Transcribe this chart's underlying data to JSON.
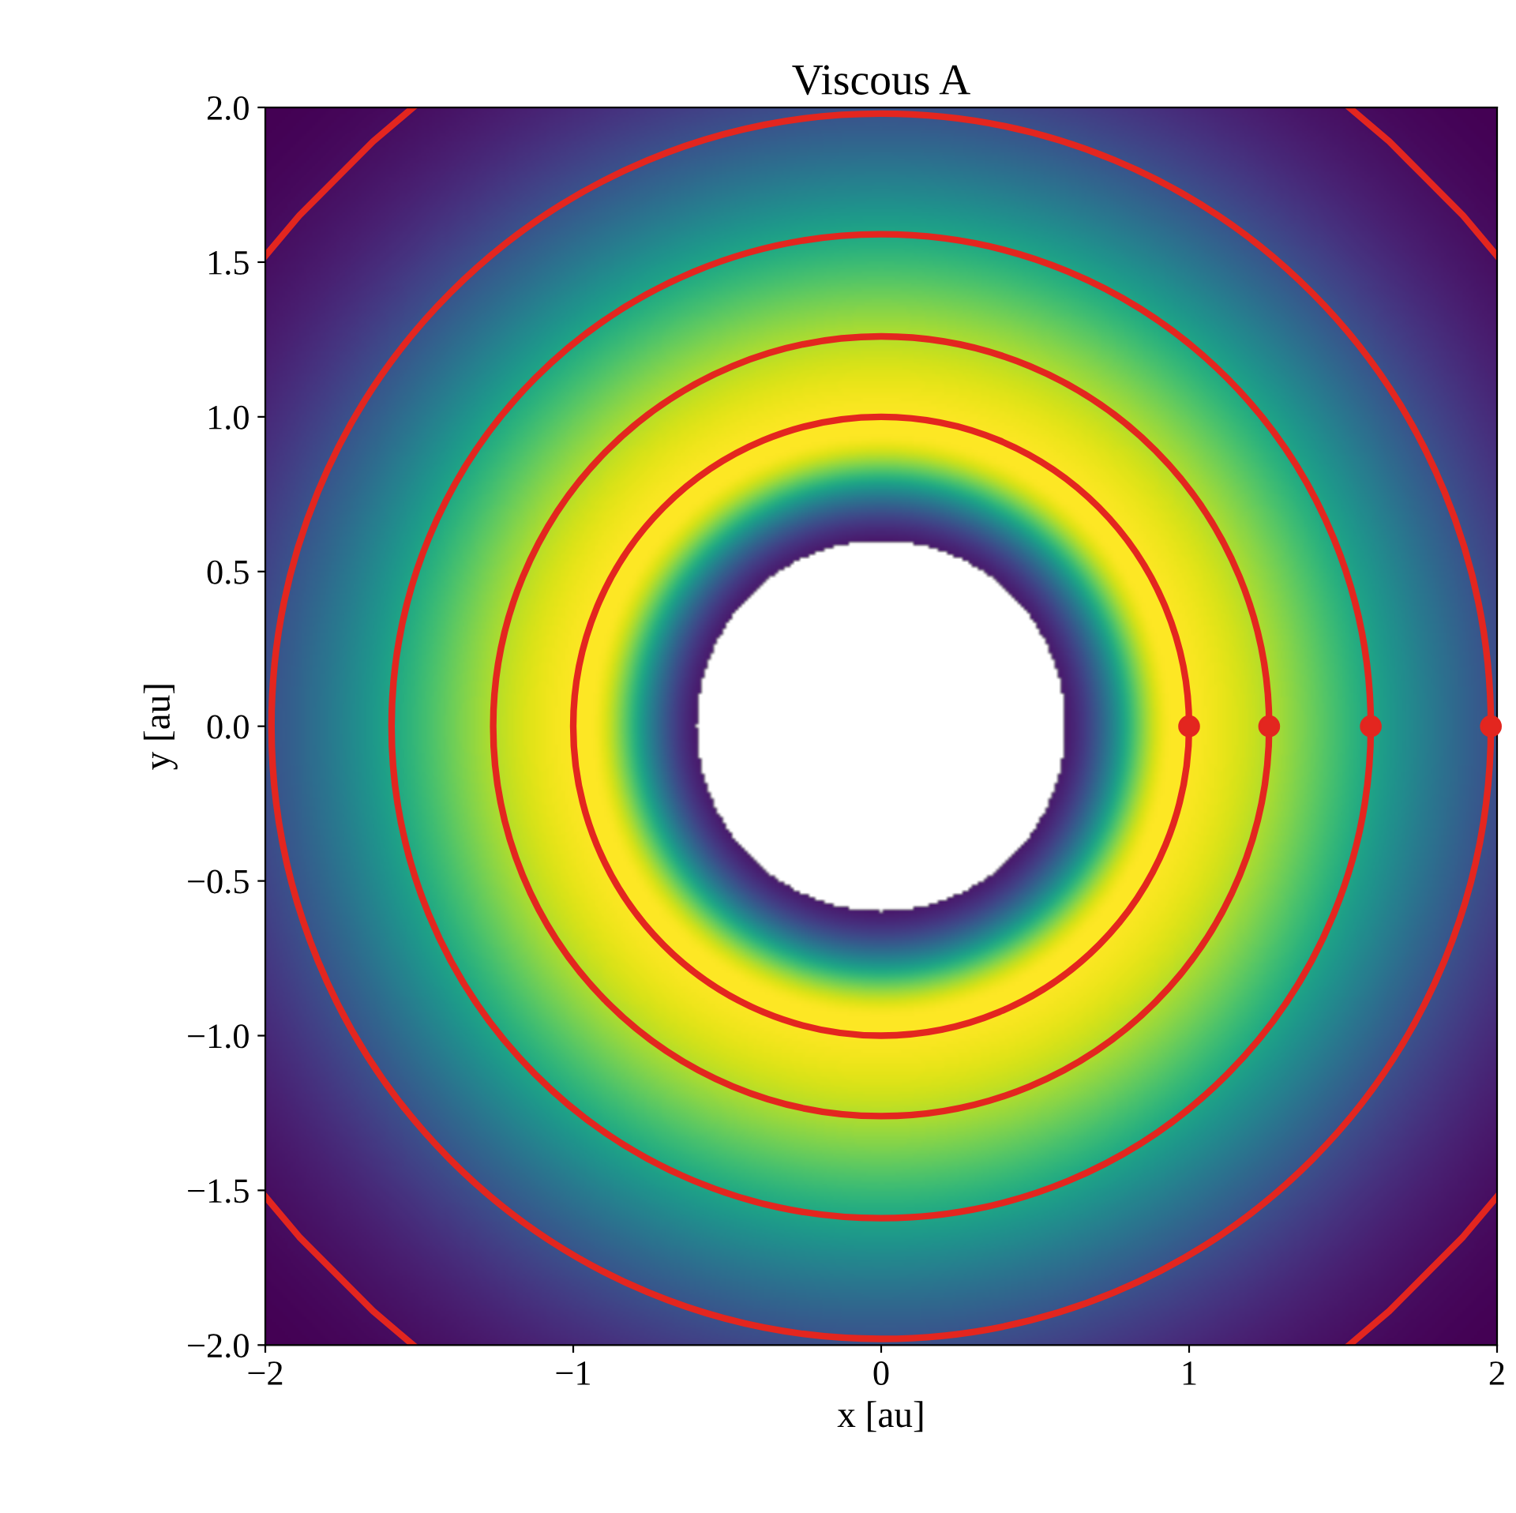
{
  "chart_data": {
    "type": "line",
    "title": "Viscous A",
    "xlabel": "x [au]",
    "ylabel": "y [au]",
    "xlim": [
      -2,
      2
    ],
    "ylim": [
      -2,
      2
    ],
    "xticks": [
      {
        "value": -2,
        "label": "−2"
      },
      {
        "value": -1,
        "label": "−1"
      },
      {
        "value": 0,
        "label": "0"
      },
      {
        "value": 1,
        "label": "1"
      },
      {
        "value": 2,
        "label": "2"
      }
    ],
    "yticks": [
      {
        "value": -2,
        "label": "−2.0"
      },
      {
        "value": -1.5,
        "label": "−1.5"
      },
      {
        "value": -1,
        "label": "−1.0"
      },
      {
        "value": -0.5,
        "label": "−0.5"
      },
      {
        "value": 0,
        "label": "0.0"
      },
      {
        "value": 0.5,
        "label": "0.5"
      },
      {
        "value": 1,
        "label": "1.0"
      },
      {
        "value": 1.5,
        "label": "1.5"
      },
      {
        "value": 2,
        "label": "2.0"
      }
    ],
    "grid": false,
    "legend": false,
    "line_style": "solid",
    "marker": "none",
    "series": [
      {
        "color": "#e3261f",
        "x": [
          2,
          1.89,
          1.77,
          1.65,
          1.52
        ],
        "values": [
          1.52,
          1.65,
          1.77,
          1.89,
          2
        ]
      },
      {
        "color": "#e3261f",
        "x": [
          -1.52,
          -1.65,
          -1.77,
          -1.89,
          -2
        ],
        "values": [
          2,
          1.89,
          1.77,
          1.65,
          1.52
        ]
      },
      {
        "color": "#e3261f",
        "x": [
          -2,
          -1.89,
          -1.77,
          -1.65,
          -1.52
        ],
        "values": [
          -1.52,
          -1.65,
          -1.77,
          -1.89,
          -2
        ]
      },
      {
        "color": "#e3261f",
        "x": [
          1.52,
          1.65,
          1.77,
          1.89,
          2
        ],
        "values": [
          -2,
          -1.89,
          -1.77,
          -1.65,
          -1.52
        ]
      },
      {
        "type": "scatter",
        "color": "#e3261f",
        "marker": "circle",
        "x": [
          1.0,
          1.26,
          1.59,
          1.98
        ],
        "values": [
          0,
          0,
          0,
          0
        ]
      }
    ]
  }
}
